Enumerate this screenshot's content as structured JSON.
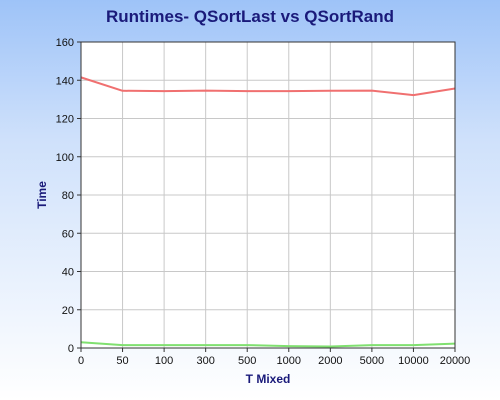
{
  "chart_data": {
    "type": "line",
    "title": "Runtimes- QSortLast vs QSortRand",
    "xlabel": "T Mixed",
    "ylabel": "Time",
    "categories": [
      "0",
      "50",
      "100",
      "300",
      "500",
      "1000",
      "2000",
      "5000",
      "10000",
      "20000"
    ],
    "ylim": [
      0,
      160
    ],
    "yticks": [
      0,
      20,
      40,
      60,
      80,
      100,
      120,
      140,
      160
    ],
    "grid": true,
    "series": [
      {
        "color": "#f07070",
        "values": [
          141.5,
          134.5,
          134.3,
          134.6,
          134.3,
          134.3,
          134.5,
          134.6,
          132.2,
          135.7
        ]
      },
      {
        "color": "#80e070",
        "values": [
          3.0,
          1.5,
          1.5,
          1.5,
          1.5,
          1.0,
          0.8,
          1.5,
          1.5,
          2.3
        ]
      }
    ]
  }
}
